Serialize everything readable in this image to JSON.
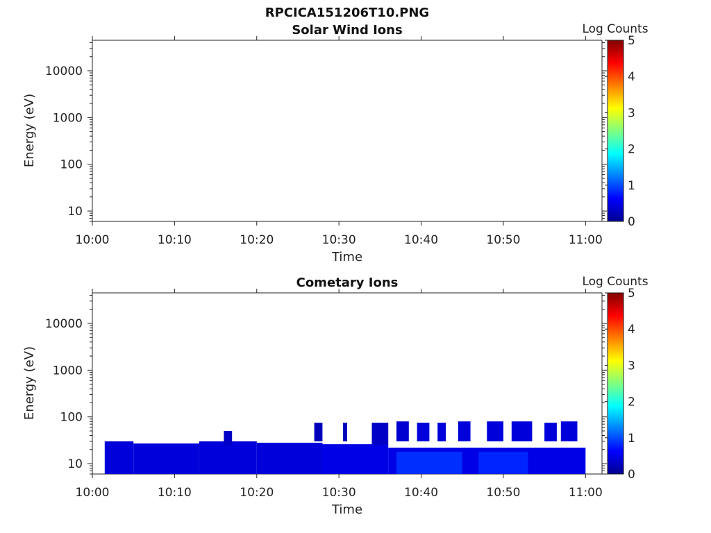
{
  "figure_title": "RPCICA151206T10.PNG",
  "chart_data": [
    {
      "type": "heatmap",
      "title": "Solar Wind Ions",
      "xlabel": "Time",
      "ylabel": "Energy (eV)",
      "x_ticks": [
        "10:00",
        "10:10",
        "10:20",
        "10:30",
        "10:40",
        "10:50",
        "11:00"
      ],
      "xlim": [
        "10:00",
        "11:02"
      ],
      "y_scale": "log",
      "y_ticks": [
        "10",
        "100",
        "1000",
        "10000"
      ],
      "ylim": [
        6,
        45000
      ],
      "colorbar": {
        "label": "Log Counts",
        "range": [
          0,
          5
        ],
        "ticks": [
          "0",
          "1",
          "2",
          "3",
          "4",
          "5"
        ]
      },
      "grid": false,
      "cells": []
    },
    {
      "type": "heatmap",
      "title": "Cometary Ions",
      "xlabel": "Time",
      "ylabel": "Energy (eV)",
      "x_ticks": [
        "10:00",
        "10:10",
        "10:20",
        "10:30",
        "10:40",
        "10:50",
        "11:00"
      ],
      "xlim": [
        "10:00",
        "11:02"
      ],
      "y_scale": "log",
      "y_ticks": [
        "10",
        "100",
        "1000",
        "10000"
      ],
      "ylim": [
        6,
        45000
      ],
      "colorbar": {
        "label": "Log Counts",
        "range": [
          0,
          5
        ],
        "ticks": [
          "0",
          "1",
          "2",
          "3",
          "4",
          "5"
        ]
      },
      "grid": false,
      "data_time_range": [
        "10:01:30",
        "11:00:00"
      ],
      "cells": [
        {
          "t0": "10:01:30",
          "t1": "10:05:00",
          "e_lo": 6,
          "e_hi": 30,
          "log_counts": 0.45
        },
        {
          "t0": "10:05:00",
          "t1": "10:13:00",
          "e_lo": 6,
          "e_hi": 27,
          "log_counts": 0.45
        },
        {
          "t0": "10:13:00",
          "t1": "10:20:00",
          "e_lo": 6,
          "e_hi": 30,
          "log_counts": 0.45
        },
        {
          "t0": "10:20:00",
          "t1": "10:28:00",
          "e_lo": 6,
          "e_hi": 28,
          "log_counts": 0.45
        },
        {
          "t0": "10:28:00",
          "t1": "10:36:00",
          "e_lo": 6,
          "e_hi": 26,
          "log_counts": 0.5
        },
        {
          "t0": "10:36:00",
          "t1": "11:00:00",
          "e_lo": 6,
          "e_hi": 22,
          "log_counts": 0.5
        },
        {
          "t0": "10:37:00",
          "t1": "10:45:00",
          "e_lo": 6,
          "e_hi": 18,
          "log_counts": 0.85
        },
        {
          "t0": "10:47:00",
          "t1": "10:53:00",
          "e_lo": 6,
          "e_hi": 18,
          "log_counts": 0.8
        },
        {
          "t0": "10:16:00",
          "t1": "10:17:00",
          "e_lo": 25,
          "e_hi": 50,
          "log_counts": 0.35
        },
        {
          "t0": "10:27:00",
          "t1": "10:28:00",
          "e_lo": 30,
          "e_hi": 75,
          "log_counts": 0.3
        },
        {
          "t0": "10:30:30",
          "t1": "10:31:00",
          "e_lo": 30,
          "e_hi": 75,
          "log_counts": 0.3
        },
        {
          "t0": "10:34:00",
          "t1": "10:36:00",
          "e_lo": 25,
          "e_hi": 75,
          "log_counts": 0.35
        },
        {
          "t0": "10:37:00",
          "t1": "10:38:30",
          "e_lo": 30,
          "e_hi": 80,
          "log_counts": 0.4
        },
        {
          "t0": "10:39:30",
          "t1": "10:41:00",
          "e_lo": 30,
          "e_hi": 75,
          "log_counts": 0.45
        },
        {
          "t0": "10:42:00",
          "t1": "10:43:00",
          "e_lo": 30,
          "e_hi": 75,
          "log_counts": 0.45
        },
        {
          "t0": "10:44:30",
          "t1": "10:46:00",
          "e_lo": 30,
          "e_hi": 80,
          "log_counts": 0.45
        },
        {
          "t0": "10:48:00",
          "t1": "10:50:00",
          "e_lo": 30,
          "e_hi": 80,
          "log_counts": 0.45
        },
        {
          "t0": "10:51:00",
          "t1": "10:53:30",
          "e_lo": 30,
          "e_hi": 80,
          "log_counts": 0.45
        },
        {
          "t0": "10:55:00",
          "t1": "10:56:30",
          "e_lo": 30,
          "e_hi": 75,
          "log_counts": 0.45
        },
        {
          "t0": "10:57:00",
          "t1": "10:59:00",
          "e_lo": 30,
          "e_hi": 80,
          "log_counts": 0.45
        }
      ]
    }
  ]
}
